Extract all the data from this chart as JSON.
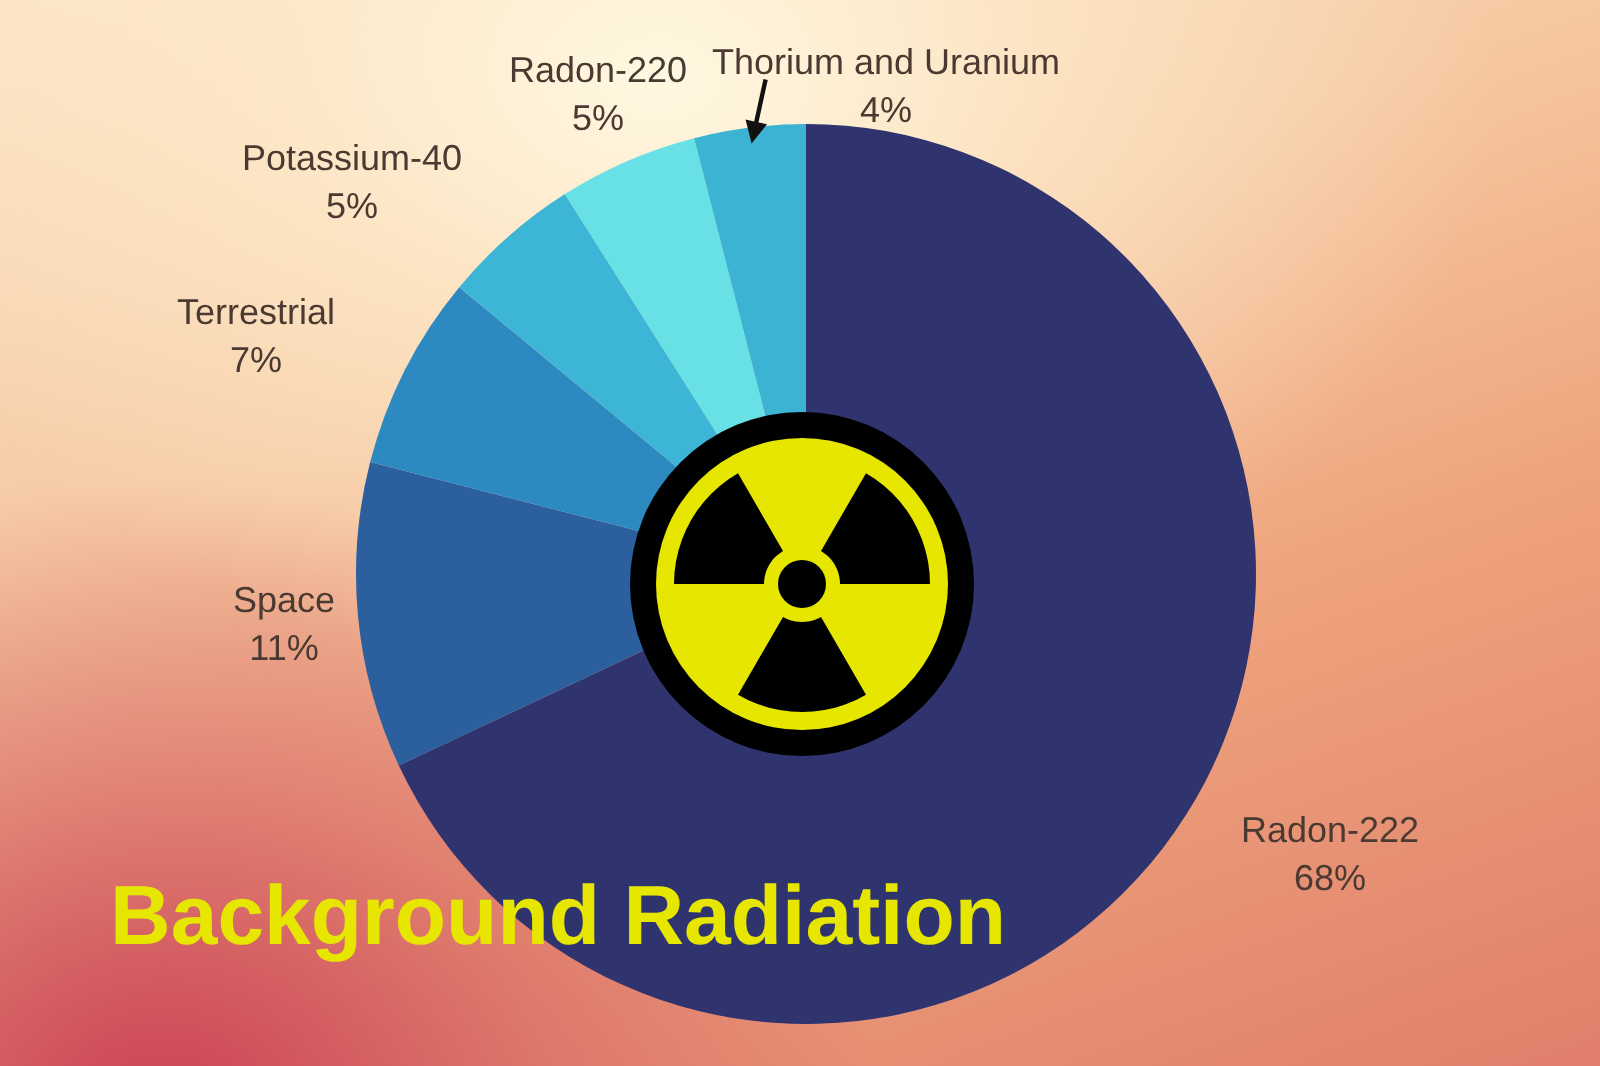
{
  "chart_data": {
    "type": "pie",
    "title": "Background Radiation",
    "categories": [
      "Radon-222",
      "Space",
      "Terrestrial",
      "Potassium-40",
      "Radon-220",
      "Thorium and Uranium"
    ],
    "values": [
      68,
      11,
      7,
      5,
      5,
      4
    ],
    "value_labels": [
      "68%",
      "11%",
      "7%",
      "5%",
      "5%",
      "4%"
    ],
    "colors": [
      "#2f336e",
      "#2b5f9e",
      "#2c8ac0",
      "#3db5d6",
      "#67e0e6",
      "#3db3d4"
    ]
  }
}
